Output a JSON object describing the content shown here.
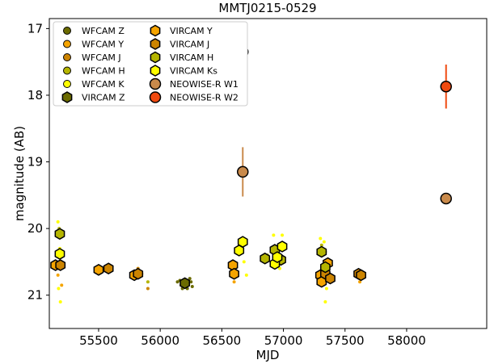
{
  "chart_data": {
    "type": "scatter",
    "title": "MMTJ0215-0529",
    "xlabel": "MJD",
    "ylabel": "magnitude (AB)",
    "xlim": [
      55100,
      58650
    ],
    "ylim": [
      21.5,
      16.85
    ],
    "y_inverted": true,
    "grid": false,
    "legend_position": "upper-left",
    "legend_columns": 2,
    "x_ticks": [
      55500,
      56000,
      56500,
      57000,
      57500,
      58000
    ],
    "x_tick_labels": [
      "55500",
      "56000",
      "56500",
      "57000",
      "57500",
      "58000"
    ],
    "y_ticks": [
      17,
      18,
      19,
      20,
      21
    ],
    "y_tick_labels": [
      "17",
      "18",
      "19",
      "20",
      "21"
    ],
    "series": [
      {
        "name": "WFCAM Z",
        "marker": "circle",
        "color": "#6b6b00",
        "points": [
          [
            56140,
            20.8
          ],
          [
            56170,
            20.85
          ],
          [
            56190,
            20.82
          ],
          [
            56200,
            20.88
          ],
          [
            56210,
            20.78
          ],
          [
            56220,
            20.9
          ],
          [
            56230,
            20.84
          ],
          [
            56250,
            20.8
          ],
          [
            56260,
            20.87
          ],
          [
            56180,
            20.9
          ],
          [
            56160,
            20.78
          ],
          [
            56240,
            20.75
          ]
        ]
      },
      {
        "name": "WFCAM Y",
        "marker": "circle",
        "color": "#f5a400",
        "points": [
          [
            55150,
            20.55
          ],
          [
            55170,
            20.7
          ],
          [
            55200,
            20.85
          ],
          [
            55500,
            20.6
          ],
          [
            55580,
            20.55
          ],
          [
            55790,
            20.72
          ],
          [
            55850,
            20.68
          ],
          [
            56580,
            20.65
          ],
          [
            56600,
            20.8
          ],
          [
            57300,
            20.7
          ],
          [
            57320,
            20.6
          ],
          [
            57350,
            20.75
          ],
          [
            57600,
            20.65
          ],
          [
            57620,
            20.8
          ]
        ]
      },
      {
        "name": "WFCAM J",
        "marker": "circle",
        "color": "#cc8400",
        "points": [
          [
            55180,
            20.6
          ],
          [
            55520,
            20.65
          ],
          [
            55800,
            20.7
          ],
          [
            55820,
            20.6
          ],
          [
            55900,
            20.9
          ],
          [
            56600,
            20.7
          ],
          [
            57330,
            20.65
          ],
          [
            57620,
            20.75
          ]
        ]
      },
      {
        "name": "WFCAM H",
        "marker": "circle",
        "color": "#b5b500",
        "points": [
          [
            55180,
            20.0
          ],
          [
            55190,
            20.1
          ],
          [
            55900,
            20.8
          ],
          [
            56850,
            20.5
          ],
          [
            56870,
            20.4
          ],
          [
            57310,
            20.25
          ],
          [
            57340,
            20.35
          ]
        ]
      },
      {
        "name": "WFCAM K",
        "marker": "circle",
        "color": "#ffff00",
        "points": [
          [
            55170,
            19.9
          ],
          [
            55185,
            20.3
          ],
          [
            55175,
            20.9
          ],
          [
            55190,
            21.1
          ],
          [
            56660,
            20.15
          ],
          [
            56680,
            20.5
          ],
          [
            56700,
            20.7
          ],
          [
            56920,
            20.1
          ],
          [
            56950,
            20.3
          ],
          [
            56970,
            20.6
          ],
          [
            56990,
            20.1
          ],
          [
            57300,
            20.15
          ],
          [
            57330,
            20.2
          ],
          [
            57350,
            20.9
          ],
          [
            57340,
            21.1
          ]
        ]
      },
      {
        "name": "VIRCAM Z",
        "marker": "hexagon",
        "color": "#6b6b00",
        "points": [
          [
            56200,
            20.82
          ]
        ]
      },
      {
        "name": "VIRCAM Y",
        "marker": "hexagon",
        "color": "#f5a400",
        "points": [
          [
            55150,
            20.55
          ],
          [
            55500,
            20.62
          ],
          [
            55790,
            20.7
          ],
          [
            56590,
            20.55
          ],
          [
            56600,
            20.68
          ],
          [
            57300,
            20.7
          ],
          [
            57310,
            20.8
          ],
          [
            57360,
            20.52
          ]
        ]
      },
      {
        "name": "VIRCAM J",
        "marker": "hexagon",
        "color": "#cc8400",
        "points": [
          [
            55190,
            20.55
          ],
          [
            55580,
            20.6
          ],
          [
            55820,
            20.68
          ],
          [
            57340,
            20.68
          ],
          [
            57380,
            20.75
          ],
          [
            57610,
            20.68
          ],
          [
            57630,
            20.7
          ]
        ]
      },
      {
        "name": "VIRCAM H",
        "marker": "hexagon",
        "color": "#b5b500",
        "points": [
          [
            55185,
            20.08
          ],
          [
            56850,
            20.45
          ],
          [
            56930,
            20.32
          ],
          [
            56980,
            20.47
          ],
          [
            57310,
            20.35
          ],
          [
            57340,
            20.58
          ]
        ]
      },
      {
        "name": "VIRCAM Ks",
        "marker": "hexagon",
        "color": "#ffff00",
        "points": [
          [
            55185,
            20.38
          ],
          [
            56640,
            20.33
          ],
          [
            56670,
            20.2
          ],
          [
            56930,
            20.53
          ],
          [
            56950,
            20.43
          ],
          [
            56990,
            20.27
          ]
        ]
      },
      {
        "name": "NEOWISE-R W1",
        "marker": "circle-large",
        "color": "#c98a4b",
        "points": [
          [
            56670,
            19.15
          ],
          [
            58320,
            19.55
          ]
        ],
        "errors": [
          [
            0.37,
            0.37
          ],
          [
            0.0,
            0.0
          ]
        ]
      },
      {
        "name": "NEOWISE-R W2",
        "marker": "circle-large",
        "color": "#f04a10",
        "points": [
          [
            56670,
            17.35
          ],
          [
            58320,
            17.87
          ]
        ],
        "errors": [
          [
            0.0,
            0.0
          ],
          [
            0.33,
            0.33
          ]
        ]
      }
    ]
  }
}
